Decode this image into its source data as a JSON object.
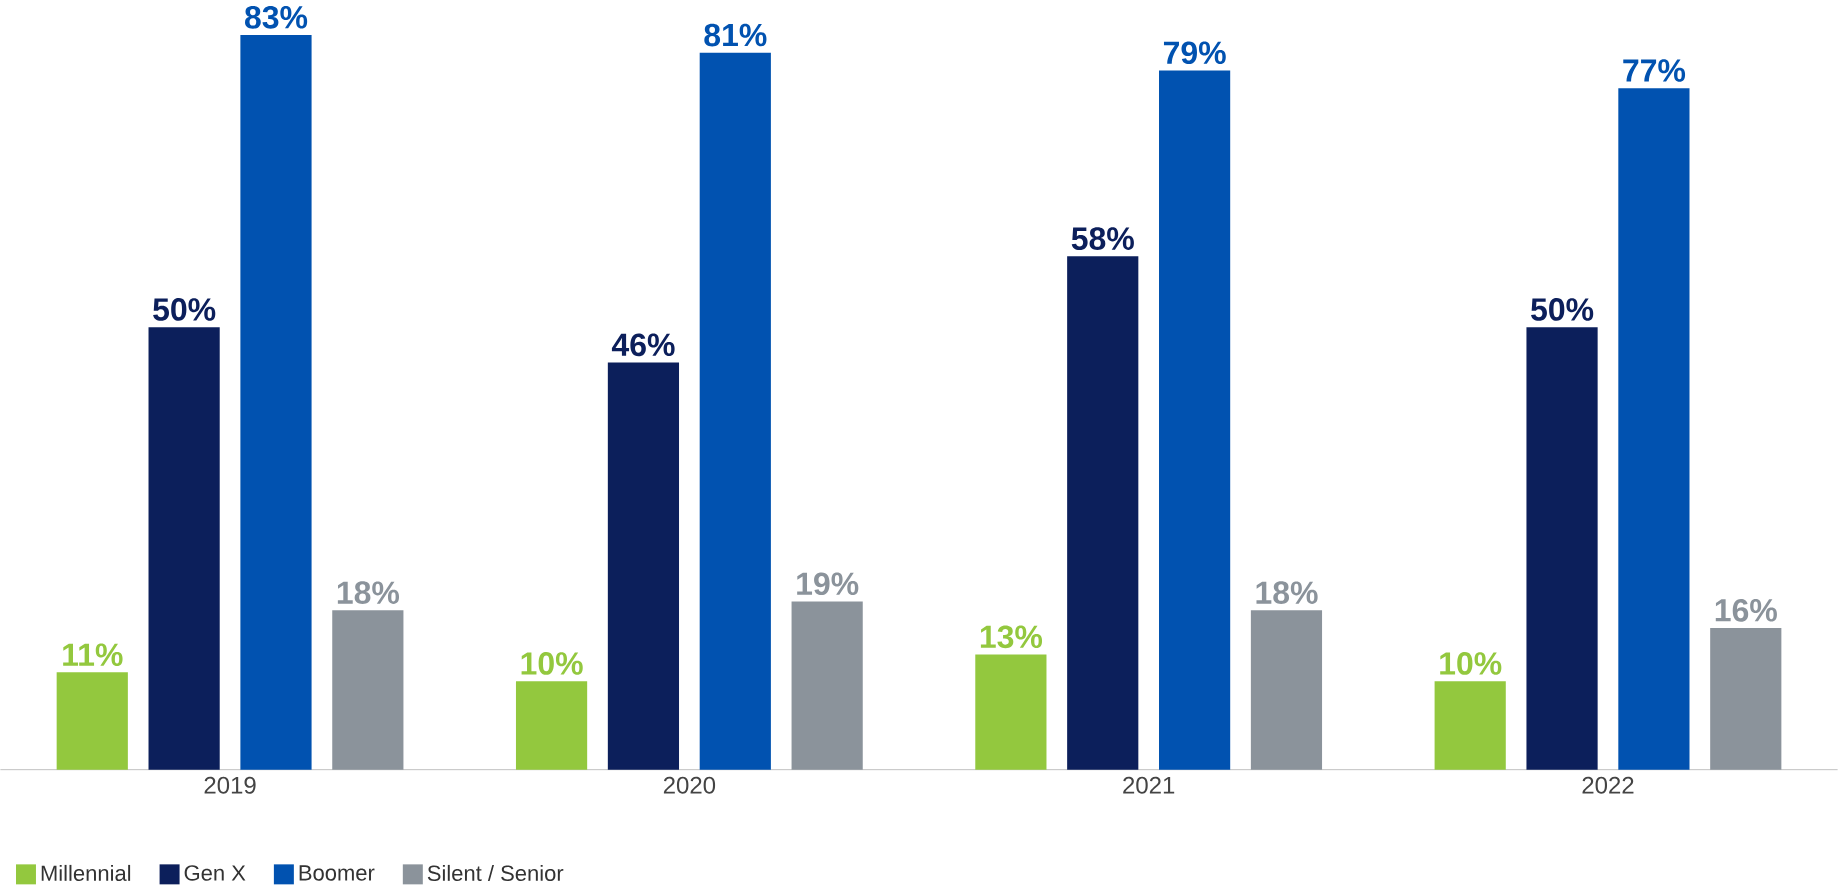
{
  "chart_data": {
    "type": "bar",
    "categories": [
      "2019",
      "2020",
      "2021",
      "2022"
    ],
    "series": [
      {
        "name": "Millennial",
        "color": "#93c83e",
        "values": [
          11,
          10,
          13,
          10
        ],
        "value_labels": [
          "11%",
          "10%",
          "13%",
          "10%"
        ]
      },
      {
        "name": "Gen X",
        "color": "#0c1f5b",
        "values": [
          50,
          46,
          58,
          50
        ],
        "value_labels": [
          "50%",
          "46%",
          "58%",
          "50%"
        ]
      },
      {
        "name": "Boomer",
        "color": "#0152b0",
        "values": [
          83,
          81,
          79,
          77
        ],
        "value_labels": [
          "83%",
          "81%",
          "79%",
          "77%"
        ]
      },
      {
        "name": "Silent / Senior",
        "color": "#8b939b",
        "values": [
          18,
          19,
          18,
          16
        ],
        "value_labels": [
          "18%",
          "19%",
          "18%",
          "16%"
        ]
      }
    ],
    "legend": "bottom left"
  }
}
